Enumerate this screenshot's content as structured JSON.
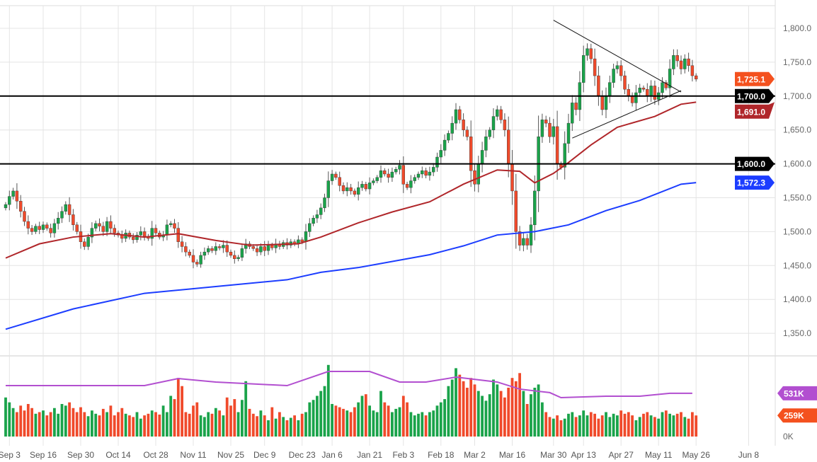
{
  "chart_data": {
    "type": "candlestick",
    "title": "",
    "price_axis": {
      "ticks": [
        1350,
        1400,
        1450,
        1500,
        1550,
        1600,
        1650,
        1700,
        1750,
        1800
      ],
      "tick_labels": [
        "1,350.0",
        "1,400.0",
        "1,450.0",
        "1,500.0",
        "1,550.0",
        "1,600.0",
        "1,650.0",
        "1,700.0",
        "1,750.0",
        "1,800.0"
      ],
      "range": [
        1310,
        1835
      ]
    },
    "volume_axis": {
      "range_k": [
        0,
        1000
      ],
      "zero_label": "0K"
    },
    "x_labels": [
      {
        "i": 1,
        "label": "Sep 3"
      },
      {
        "i": 10,
        "label": "Sep 16"
      },
      {
        "i": 20,
        "label": "Sep 30"
      },
      {
        "i": 30,
        "label": "Oct 14"
      },
      {
        "i": 40,
        "label": "Oct 28"
      },
      {
        "i": 50,
        "label": "Nov 11"
      },
      {
        "i": 60,
        "label": "Nov 25"
      },
      {
        "i": 69,
        "label": "Dec 9"
      },
      {
        "i": 79,
        "label": "Dec 23"
      },
      {
        "i": 87,
        "label": "Jan 6"
      },
      {
        "i": 97,
        "label": "Jan 21"
      },
      {
        "i": 106,
        "label": "Feb 3"
      },
      {
        "i": 116,
        "label": "Feb 18"
      },
      {
        "i": 125,
        "label": "Mar 2"
      },
      {
        "i": 135,
        "label": "Mar 16"
      },
      {
        "i": 146,
        "label": "Mar 30"
      },
      {
        "i": 154,
        "label": "Apr 13"
      },
      {
        "i": 164,
        "label": "Apr 27"
      },
      {
        "i": 174,
        "label": "May 11"
      },
      {
        "i": 184,
        "label": "May 26"
      },
      {
        "i": 198,
        "label": "Jun 8"
      }
    ],
    "closes": [
      1540,
      1552,
      1560,
      1545,
      1530,
      1515,
      1505,
      1500,
      1508,
      1503,
      1510,
      1505,
      1498,
      1512,
      1520,
      1530,
      1540,
      1525,
      1510,
      1500,
      1485,
      1478,
      1492,
      1505,
      1512,
      1508,
      1500,
      1515,
      1505,
      1498,
      1495,
      1490,
      1498,
      1492,
      1488,
      1495,
      1500,
      1493,
      1490,
      1505,
      1498,
      1492,
      1495,
      1510,
      1512,
      1505,
      1485,
      1478,
      1470,
      1465,
      1455,
      1452,
      1465,
      1470,
      1475,
      1472,
      1478,
      1476,
      1480,
      1470,
      1465,
      1460,
      1462,
      1475,
      1482,
      1478,
      1475,
      1470,
      1478,
      1472,
      1480,
      1476,
      1482,
      1478,
      1484,
      1480,
      1485,
      1482,
      1488,
      1485,
      1500,
      1512,
      1520,
      1525,
      1535,
      1550,
      1575,
      1585,
      1580,
      1568,
      1560,
      1565,
      1560,
      1555,
      1565,
      1570,
      1563,
      1572,
      1575,
      1580,
      1590,
      1585,
      1580,
      1588,
      1592,
      1598,
      1570,
      1565,
      1575,
      1580,
      1585,
      1590,
      1583,
      1588,
      1595,
      1610,
      1620,
      1635,
      1645,
      1660,
      1680,
      1665,
      1650,
      1640,
      1590,
      1570,
      1600,
      1620,
      1640,
      1650,
      1670,
      1680,
      1665,
      1650,
      1600,
      1560,
      1500,
      1480,
      1490,
      1480,
      1510,
      1560,
      1640,
      1665,
      1660,
      1640,
      1655,
      1600,
      1595,
      1630,
      1660,
      1690,
      1680,
      1720,
      1760,
      1770,
      1755,
      1730,
      1700,
      1680,
      1700,
      1720,
      1740,
      1745,
      1730,
      1710,
      1700,
      1690,
      1705,
      1712,
      1710,
      1700,
      1715,
      1695,
      1705,
      1720,
      1712,
      1740,
      1760,
      1752,
      1740,
      1755,
      1745,
      1730,
      1725
    ],
    "volumes_k": [
      480,
      420,
      350,
      300,
      380,
      320,
      400,
      350,
      280,
      300,
      320,
      260,
      300,
      350,
      280,
      400,
      380,
      420,
      350,
      300,
      360,
      300,
      250,
      320,
      280,
      260,
      340,
      300,
      380,
      260,
      300,
      350,
      280,
      260,
      240,
      300,
      220,
      260,
      280,
      320,
      300,
      270,
      380,
      300,
      500,
      460,
      720,
      620,
      300,
      280,
      380,
      420,
      260,
      240,
      300,
      280,
      350,
      320,
      260,
      480,
      380,
      460,
      300,
      450,
      680,
      340,
      280,
      250,
      320,
      260,
      200,
      360,
      220,
      300,
      240,
      200,
      230,
      260,
      200,
      280,
      300,
      420,
      450,
      500,
      560,
      620,
      880,
      400,
      380,
      360,
      340,
      320,
      300,
      360,
      420,
      500,
      520,
      380,
      320,
      300,
      560,
      420,
      380,
      300,
      340,
      360,
      500,
      420,
      300,
      260,
      280,
      300,
      260,
      300,
      320,
      380,
      420,
      460,
      620,
      700,
      840,
      760,
      680,
      600,
      720,
      640,
      560,
      500,
      440,
      520,
      700,
      640,
      560,
      480,
      600,
      720,
      680,
      780,
      560,
      400,
      520,
      600,
      640,
      420,
      300,
      240,
      220,
      260,
      200,
      220,
      280,
      300,
      240,
      260,
      320,
      260,
      300,
      280,
      220,
      260,
      300,
      240,
      280,
      260,
      320,
      280,
      300,
      260,
      200,
      240,
      280,
      300,
      260,
      240,
      220,
      300,
      320,
      280,
      260,
      280,
      300,
      240,
      220,
      300,
      259
    ],
    "ma_red": [
      [
        0,
        1461
      ],
      [
        9,
        1482
      ],
      [
        18,
        1492
      ],
      [
        28,
        1497
      ],
      [
        37,
        1492
      ],
      [
        46,
        1497
      ],
      [
        56,
        1487
      ],
      [
        65,
        1480
      ],
      [
        78,
        1482
      ],
      [
        84,
        1492
      ],
      [
        94,
        1513
      ],
      [
        103,
        1529
      ],
      [
        113,
        1544
      ],
      [
        122,
        1570
      ],
      [
        131,
        1591
      ],
      [
        137,
        1589
      ],
      [
        141,
        1572
      ],
      [
        146,
        1586
      ],
      [
        150,
        1602
      ],
      [
        156,
        1628
      ],
      [
        163,
        1654
      ],
      [
        173,
        1670
      ],
      [
        180,
        1688
      ],
      [
        184,
        1691
      ]
    ],
    "ma_blue": [
      [
        0,
        1356
      ],
      [
        18,
        1386
      ],
      [
        37,
        1409
      ],
      [
        56,
        1419
      ],
      [
        75,
        1429
      ],
      [
        84,
        1440
      ],
      [
        94,
        1447
      ],
      [
        113,
        1466
      ],
      [
        122,
        1479
      ],
      [
        131,
        1495
      ],
      [
        141,
        1500
      ],
      [
        150,
        1510
      ],
      [
        160,
        1531
      ],
      [
        169,
        1546
      ],
      [
        180,
        1570
      ],
      [
        184,
        1572.3
      ]
    ],
    "ma_volume": [
      [
        0,
        626
      ],
      [
        18,
        626
      ],
      [
        37,
        626
      ],
      [
        46,
        713
      ],
      [
        56,
        670
      ],
      [
        75,
        626
      ],
      [
        86,
        800
      ],
      [
        97,
        800
      ],
      [
        105,
        670
      ],
      [
        112,
        670
      ],
      [
        120,
        730
      ],
      [
        131,
        670
      ],
      [
        137,
        583
      ],
      [
        145,
        540
      ],
      [
        148,
        478
      ],
      [
        160,
        496
      ],
      [
        169,
        496
      ],
      [
        177,
        531
      ],
      [
        183,
        531
      ]
    ],
    "hlines": [
      1700,
      1600
    ],
    "trendlines": [
      {
        "from": [
          146,
          1812
        ],
        "to": [
          180,
          1706
        ]
      },
      {
        "from": [
          151,
          1638
        ],
        "to": [
          180,
          1708
        ]
      }
    ],
    "badges": [
      {
        "label": "1,725.1",
        "value": 1725.1,
        "color": "#f4511e"
      },
      {
        "label": "1,700.0",
        "value": 1700,
        "color": "#000000"
      },
      {
        "label": "1,691.0",
        "value": 1691,
        "color": "#b0262a"
      },
      {
        "label": "1,600.0",
        "value": 1600,
        "color": "#000000"
      },
      {
        "label": "1,572.3",
        "value": 1572.3,
        "color": "#1c3dff"
      }
    ],
    "volume_badges": [
      {
        "label": "531K",
        "value": 531,
        "color": "#b24fd0"
      },
      {
        "label": "259K",
        "value": 259,
        "color": "#f4511e"
      }
    ],
    "colors": {
      "up": "#1aa34a",
      "down": "#f04a2b",
      "ma_red": "#b0262a",
      "ma_blue": "#1c3dff",
      "ma_volume": "#b24fd0",
      "grid": "#e4e4e4"
    }
  }
}
